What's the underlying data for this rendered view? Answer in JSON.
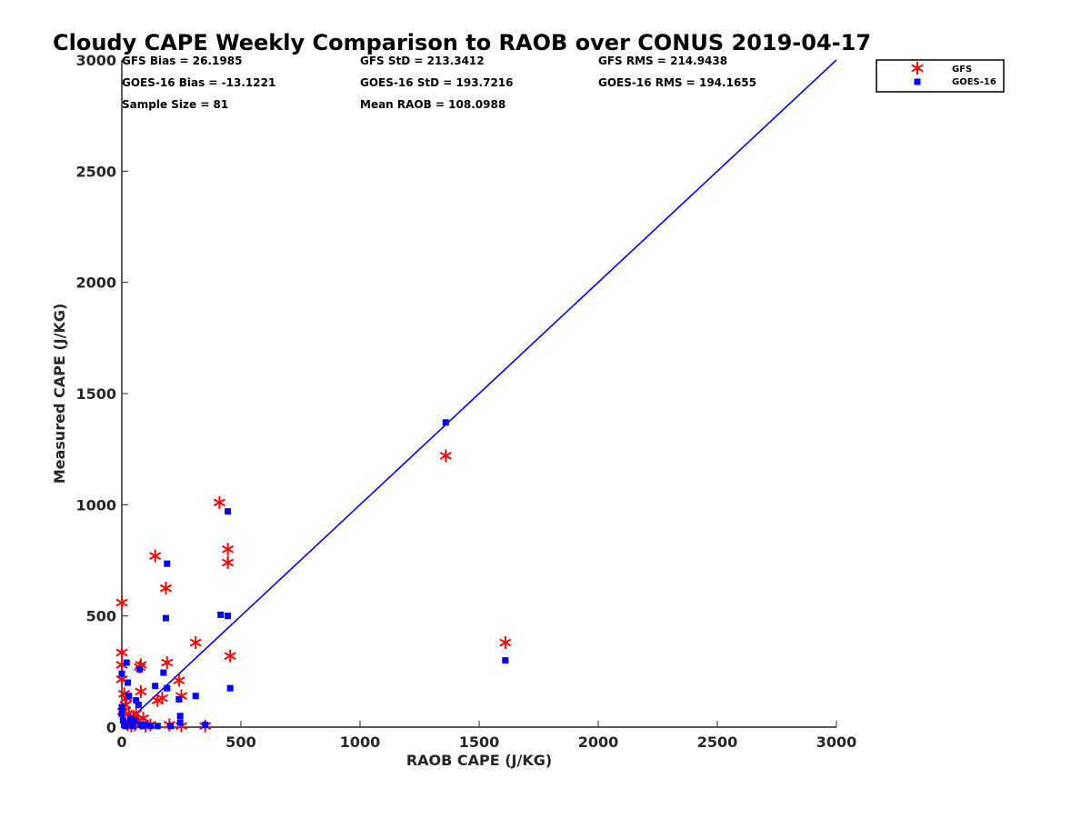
{
  "chart_data": {
    "type": "scatter",
    "title": "Cloudy CAPE Weekly Comparison to RAOB over CONUS 2019-04-17",
    "xlabel": "RAOB CAPE (J/KG)",
    "ylabel": "Measured CAPE (J/KG)",
    "xlim": [
      0,
      3000
    ],
    "ylim": [
      0,
      3000
    ],
    "x_ticks": [
      "0",
      "500",
      "1000",
      "1500",
      "2000",
      "2500",
      "3000"
    ],
    "y_ticks": [
      "0",
      "500",
      "1000",
      "1500",
      "2000",
      "2500",
      "3000"
    ],
    "grid": false,
    "legend_position": "top-right, outside plot",
    "reference_line": {
      "from": [
        0,
        0
      ],
      "to": [
        3000,
        3000
      ],
      "color": "#0000ff"
    },
    "stats": [
      [
        "GFS Bias = 26.1985",
        "GFS StD = 213.3412",
        "GFS RMS = 214.9438"
      ],
      [
        "GOES-16 Bias = -13.1221",
        "GOES-16 StD = 193.7216",
        "GOES-16 RMS = 194.1655"
      ],
      [
        "Sample Size = 81",
        "Mean RAOB = 108.0988",
        ""
      ]
    ],
    "series": [
      {
        "name": "GFS",
        "marker": "asterisk",
        "color": "#ff0000",
        "points": [
          [
            0,
            560
          ],
          [
            0,
            335
          ],
          [
            0,
            215
          ],
          [
            0,
            280
          ],
          [
            5,
            70
          ],
          [
            10,
            150
          ],
          [
            15,
            100
          ],
          [
            20,
            130
          ],
          [
            25,
            10
          ],
          [
            30,
            60
          ],
          [
            35,
            20
          ],
          [
            40,
            5
          ],
          [
            50,
            40
          ],
          [
            55,
            10
          ],
          [
            60,
            60
          ],
          [
            70,
            30
          ],
          [
            75,
            270
          ],
          [
            80,
            280
          ],
          [
            80,
            160
          ],
          [
            90,
            40
          ],
          [
            100,
            5
          ],
          [
            120,
            10
          ],
          [
            140,
            770
          ],
          [
            150,
            120
          ],
          [
            170,
            130
          ],
          [
            185,
            625
          ],
          [
            190,
            290
          ],
          [
            200,
            10
          ],
          [
            240,
            210
          ],
          [
            250,
            5
          ],
          [
            250,
            140
          ],
          [
            310,
            380
          ],
          [
            350,
            5
          ],
          [
            410,
            1010
          ],
          [
            445,
            800
          ],
          [
            445,
            740
          ],
          [
            455,
            320
          ],
          [
            1360,
            1220
          ],
          [
            1610,
            380
          ]
        ]
      },
      {
        "name": "GOES-16",
        "marker": "square",
        "color": "#0000ff",
        "points": [
          [
            0,
            240
          ],
          [
            0,
            90
          ],
          [
            0,
            60
          ],
          [
            5,
            30
          ],
          [
            10,
            10
          ],
          [
            15,
            5
          ],
          [
            20,
            290
          ],
          [
            25,
            200
          ],
          [
            30,
            140
          ],
          [
            35,
            40
          ],
          [
            40,
            20
          ],
          [
            45,
            5
          ],
          [
            55,
            30
          ],
          [
            60,
            120
          ],
          [
            70,
            100
          ],
          [
            75,
            260
          ],
          [
            80,
            10
          ],
          [
            90,
            5
          ],
          [
            100,
            10
          ],
          [
            120,
            5
          ],
          [
            140,
            185
          ],
          [
            150,
            5
          ],
          [
            175,
            245
          ],
          [
            185,
            490
          ],
          [
            190,
            735
          ],
          [
            190,
            175
          ],
          [
            205,
            5
          ],
          [
            240,
            125
          ],
          [
            245,
            50
          ],
          [
            245,
            20
          ],
          [
            310,
            140
          ],
          [
            350,
            10
          ],
          [
            415,
            505
          ],
          [
            445,
            500
          ],
          [
            445,
            970
          ],
          [
            455,
            175
          ],
          [
            1360,
            1370
          ],
          [
            1610,
            300
          ]
        ]
      }
    ]
  }
}
